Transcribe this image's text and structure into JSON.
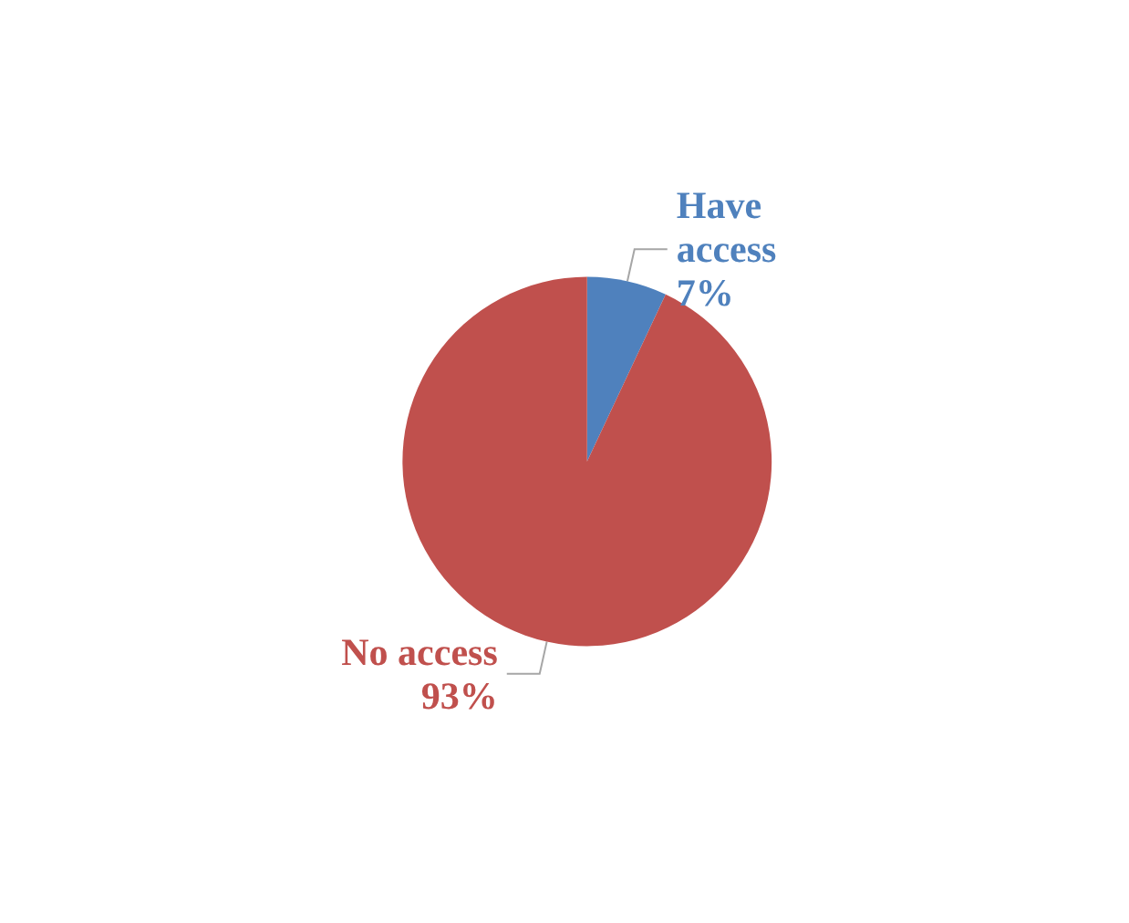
{
  "chart_data": {
    "type": "pie",
    "categories": [
      "Have access",
      "No access"
    ],
    "values": [
      7,
      93
    ],
    "colors": [
      "#4f81bd",
      "#c0504d"
    ],
    "value_labels": [
      "7%",
      "93%"
    ],
    "legend": false
  }
}
